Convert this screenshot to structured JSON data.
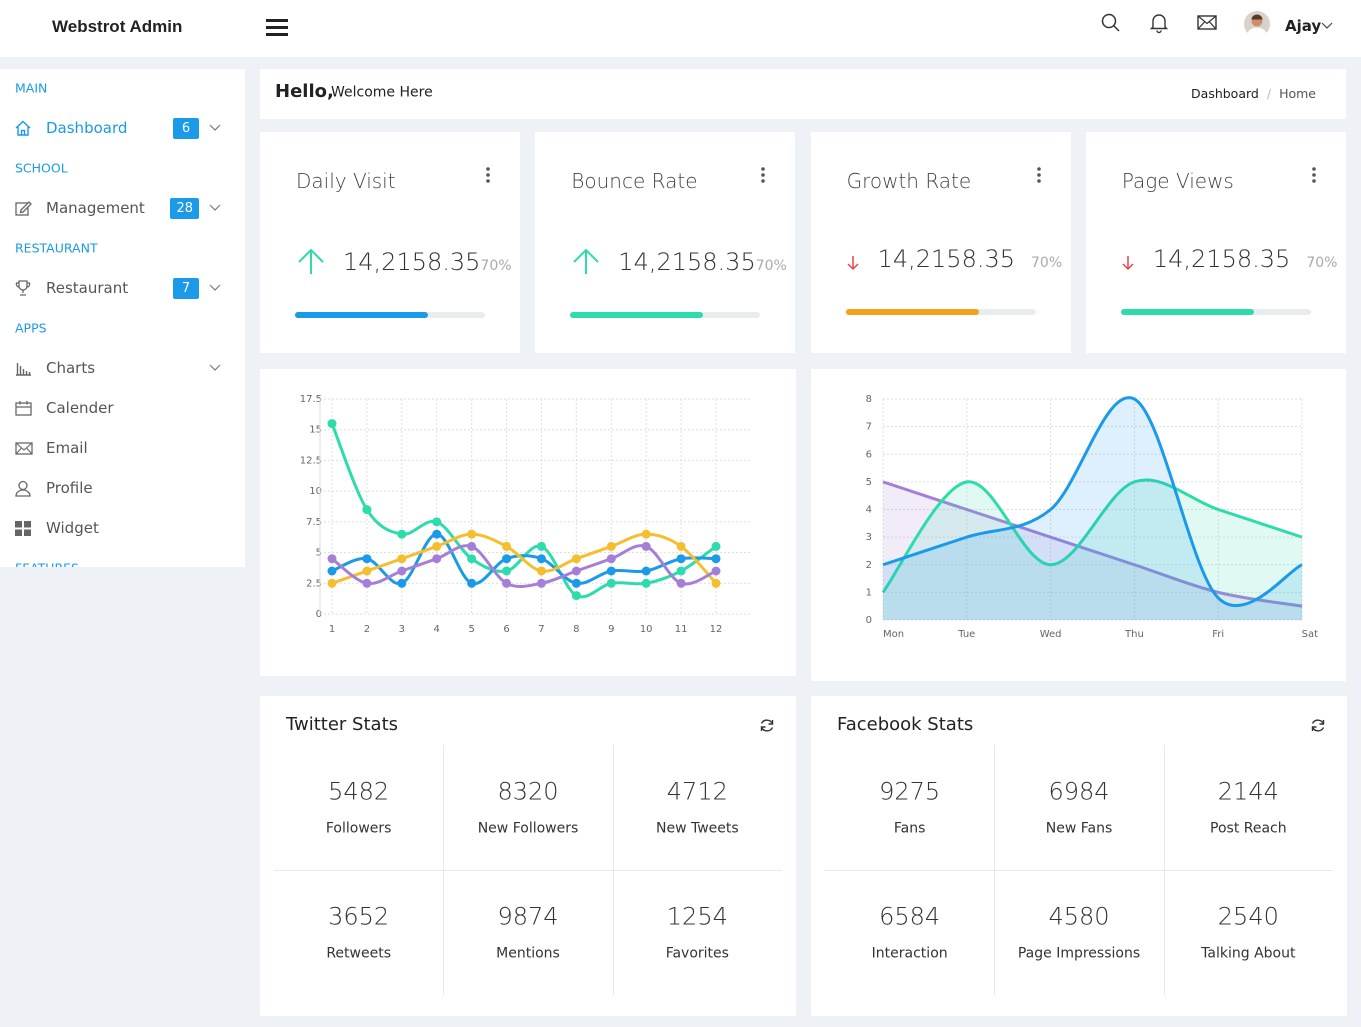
{
  "header": {
    "brand": "Webstrot Admin",
    "user": "Ajay"
  },
  "sidebar": [
    {
      "section": "MAIN",
      "items": [
        {
          "label": "Dashboard",
          "badge": "6",
          "active": true,
          "expandable": true,
          "icon": "home"
        }
      ]
    },
    {
      "section": "SCHOOL",
      "items": [
        {
          "label": "Management",
          "badge": "28",
          "expandable": true,
          "icon": "edit"
        }
      ]
    },
    {
      "section": "RESTAURANT",
      "items": [
        {
          "label": "Restaurant",
          "badge": "7",
          "expandable": true,
          "icon": "trophy"
        }
      ]
    },
    {
      "section": "APPS",
      "items": [
        {
          "label": "Charts",
          "expandable": true,
          "icon": "chart"
        },
        {
          "label": "Calender",
          "icon": "calendar"
        },
        {
          "label": "Email",
          "icon": "mail"
        },
        {
          "label": "Profile",
          "icon": "user"
        },
        {
          "label": "Widget",
          "icon": "grid"
        }
      ]
    },
    {
      "section": "FEATURES"
    }
  ],
  "welcome": {
    "hello": "Hello,",
    "text": "Welcome Here",
    "breadcrumb": [
      "Dashboard",
      "Home"
    ]
  },
  "stats": [
    {
      "title": "Daily Visit",
      "value": "14,2158.35",
      "percent": "70%",
      "trend": "up",
      "color": "#1a9ae8",
      "progress": 70
    },
    {
      "title": "Bounce Rate",
      "value": "14,2158.35",
      "percent": "70%",
      "trend": "up",
      "color": "#2ddbac",
      "progress": 70
    },
    {
      "title": "Growth Rate",
      "value": "14,2158.35",
      "percent": "70%",
      "trend": "down",
      "color": "#f4a11d",
      "progress": 70
    },
    {
      "title": "Page Views",
      "value": "14,2158.35",
      "percent": "70%",
      "trend": "down",
      "color": "#2ddbac",
      "progress": 70
    }
  ],
  "chart_data": [
    {
      "type": "line",
      "categories": [
        "1",
        "2",
        "3",
        "4",
        "5",
        "6",
        "7",
        "8",
        "9",
        "10",
        "11",
        "12"
      ],
      "ylim": [
        0,
        17.5
      ],
      "yticks": [
        0,
        2.5,
        5,
        7.5,
        10,
        12.5,
        15,
        17.5
      ],
      "grid": true,
      "series": [
        {
          "color": "#2ddbac",
          "values": [
            15.5,
            8.5,
            6.5,
            7.5,
            4.5,
            3.5,
            5.5,
            1.5,
            2.5,
            2.5,
            3.5,
            5.5
          ]
        },
        {
          "color": "#1a9ae8",
          "values": [
            3.5,
            4.5,
            2.5,
            6.5,
            2.5,
            4.5,
            4.5,
            2.5,
            3.5,
            3.5,
            4.5,
            4.5
          ]
        },
        {
          "color": "#f5be2f",
          "values": [
            2.5,
            3.5,
            4.5,
            5.5,
            6.5,
            5.5,
            3.5,
            4.5,
            5.5,
            6.5,
            5.5,
            2.5
          ]
        },
        {
          "color": "#a57fd7",
          "values": [
            4.5,
            2.5,
            3.5,
            4.5,
            5.5,
            2.5,
            2.5,
            3.5,
            4.5,
            5.5,
            2.5,
            3.5
          ]
        }
      ]
    },
    {
      "type": "area",
      "categories": [
        "Mon",
        "Tue",
        "Wed",
        "Thu",
        "Fri",
        "Sat"
      ],
      "ylim": [
        0,
        8
      ],
      "yticks": [
        0,
        1,
        2,
        3,
        4,
        5,
        6,
        7,
        8
      ],
      "grid": true,
      "series": [
        {
          "color": "#a57fd7",
          "values": [
            5,
            4,
            3,
            2,
            1,
            0.5
          ]
        },
        {
          "color": "#2ddbac",
          "values": [
            1,
            5,
            2,
            5,
            4,
            3
          ]
        },
        {
          "color": "#1a9ae8",
          "values": [
            2,
            3,
            4,
            8,
            0.8,
            2
          ]
        }
      ]
    }
  ],
  "twitter": {
    "title": "Twitter Stats",
    "stats": [
      {
        "value": "5482",
        "label": "Followers"
      },
      {
        "value": "8320",
        "label": "New Followers"
      },
      {
        "value": "4712",
        "label": "New Tweets"
      },
      {
        "value": "3652",
        "label": "Retweets"
      },
      {
        "value": "9874",
        "label": "Mentions"
      },
      {
        "value": "1254",
        "label": "Favorites"
      }
    ]
  },
  "facebook": {
    "title": "Facebook Stats",
    "stats": [
      {
        "value": "9275",
        "label": "Fans"
      },
      {
        "value": "6984",
        "label": "New Fans"
      },
      {
        "value": "2144",
        "label": "Post Reach"
      },
      {
        "value": "6584",
        "label": "Interaction"
      },
      {
        "value": "4580",
        "label": "Page Impressions"
      },
      {
        "value": "2540",
        "label": "Talking About"
      }
    ]
  }
}
